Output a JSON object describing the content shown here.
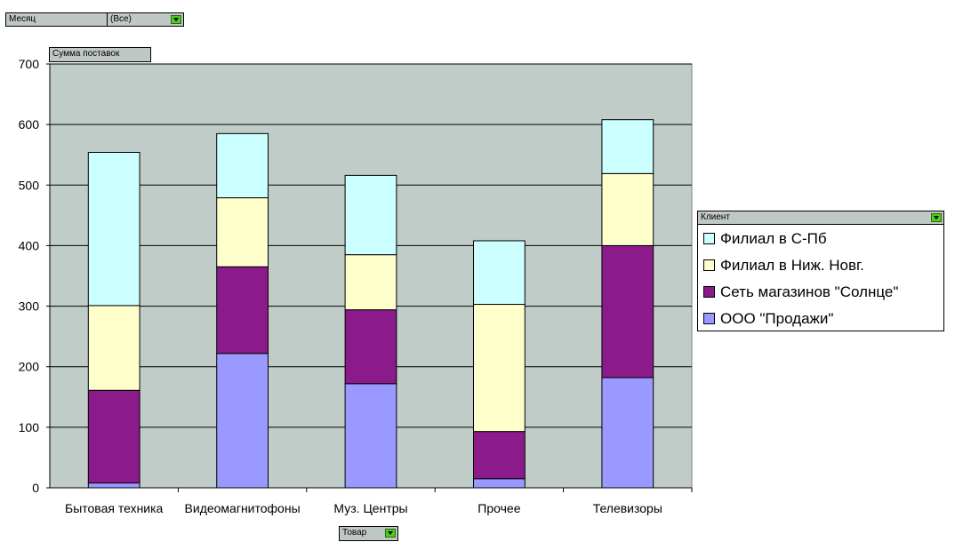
{
  "page_filter": {
    "field": "Месяц",
    "value": "(Все)"
  },
  "data_field": "Сумма поставок",
  "category_field": "Товар",
  "series_field": "Клиент",
  "chart_data": {
    "type": "bar",
    "stacked": true,
    "categories": [
      "Бытовая техника",
      "Видеомагнитофоны",
      "Муз. Центры",
      "Прочее",
      "Телевизоры"
    ],
    "series": [
      {
        "name": "ООО \"Продажи\"",
        "color": "#9999ff",
        "values": [
          8,
          222,
          172,
          15,
          182
        ]
      },
      {
        "name": "Сеть магазинов \"Солнце\"",
        "color": "#8b1a8b",
        "values": [
          153,
          143,
          122,
          78,
          218
        ]
      },
      {
        "name": "Филиал в Ниж. Новг.",
        "color": "#ffffcc",
        "values": [
          140,
          114,
          91,
          210,
          119
        ]
      },
      {
        "name": "Филиал в С-Пб",
        "color": "#ccffff",
        "values": [
          253,
          106,
          131,
          105,
          89
        ]
      }
    ],
    "ylim": [
      0,
      700
    ],
    "yticks": [
      0,
      100,
      200,
      300,
      400,
      500,
      600,
      700
    ],
    "grid": true,
    "plot_background": "#c0ccc8",
    "legend_position": "right"
  }
}
